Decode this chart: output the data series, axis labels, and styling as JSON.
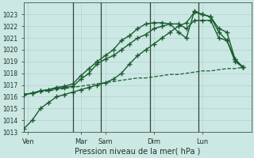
{
  "background_color": "#cce8e4",
  "grid_color": "#aaccc8",
  "line_color": "#1a5c30",
  "xlabel": "Pression niveau de la mer( hPa )",
  "ylim": [
    1013,
    1024
  ],
  "yticks": [
    1013,
    1014,
    1015,
    1016,
    1017,
    1018,
    1019,
    1020,
    1021,
    1022,
    1023
  ],
  "xlim": [
    0,
    28
  ],
  "xtick_labels": [
    "Ven",
    "Mar",
    "Sam",
    "Dim",
    "Lun"
  ],
  "xtick_positions": [
    0.5,
    7,
    10,
    16,
    22
  ],
  "vline_positions": [
    6,
    9.5,
    15.5,
    21.5
  ],
  "vline_color": "#334433",
  "series": [
    {
      "x": [
        0,
        1,
        2,
        3,
        4,
        5,
        6,
        7,
        8,
        9,
        10,
        11,
        12,
        13,
        14,
        15,
        16,
        17,
        18,
        19,
        20,
        21,
        22,
        23,
        24,
        25,
        26,
        27
      ],
      "y": [
        1016.2,
        1016.3,
        1016.4,
        1016.5,
        1016.6,
        1016.7,
        1016.8,
        1016.9,
        1017.0,
        1017.1,
        1017.2,
        1017.3,
        1017.4,
        1017.5,
        1017.6,
        1017.6,
        1017.7,
        1017.8,
        1017.9,
        1017.9,
        1018.0,
        1018.1,
        1018.2,
        1018.2,
        1018.3,
        1018.4,
        1018.4,
        1018.5
      ],
      "style": "--",
      "marker": null,
      "linewidth": 0.9
    },
    {
      "x": [
        0,
        1,
        2,
        3,
        4,
        5,
        6,
        7,
        8,
        9,
        10,
        11,
        12,
        13,
        14,
        15,
        16,
        17,
        18,
        19,
        20,
        21,
        22,
        23,
        24,
        25,
        26,
        27
      ],
      "y": [
        1016.2,
        1016.3,
        1016.5,
        1016.6,
        1016.7,
        1016.8,
        1016.9,
        1017.5,
        1018.0,
        1018.8,
        1019.2,
        1019.5,
        1020.0,
        1020.5,
        1021.0,
        1021.3,
        1021.8,
        1022.0,
        1022.2,
        1022.2,
        1021.8,
        1022.5,
        1022.5,
        1022.5,
        1021.0,
        1020.8,
        1019.0,
        1018.5
      ],
      "style": "-",
      "marker": "+",
      "markersize": 4,
      "linewidth": 1.0
    },
    {
      "x": [
        0,
        1,
        2,
        3,
        4,
        5,
        6,
        7,
        8,
        9,
        10,
        11,
        12,
        13,
        14,
        15,
        16,
        17,
        18,
        19,
        20,
        21,
        22,
        23,
        24,
        25,
        26,
        27
      ],
      "y": [
        1016.2,
        1016.3,
        1016.5,
        1016.6,
        1016.8,
        1016.9,
        1017.1,
        1017.8,
        1018.4,
        1019.0,
        1019.5,
        1020.0,
        1020.8,
        1021.2,
        1021.8,
        1022.2,
        1022.3,
        1022.3,
        1022.2,
        1021.5,
        1021.0,
        1023.3,
        1023.0,
        1022.8,
        1021.5,
        1020.8,
        1019.2,
        1018.5
      ],
      "style": "-",
      "marker": "+",
      "markersize": 4,
      "linewidth": 1.0
    },
    {
      "x": [
        0,
        1,
        2,
        3,
        4,
        5,
        6,
        7,
        8,
        9,
        10,
        11,
        12,
        13,
        14,
        15,
        16,
        17,
        18,
        19,
        20,
        21,
        22,
        23,
        24,
        25,
        26,
        27
      ],
      "y": [
        1013.3,
        1014.0,
        1015.0,
        1015.5,
        1016.0,
        1016.2,
        1016.4,
        1016.6,
        1016.8,
        1017.0,
        1017.2,
        1017.5,
        1018.0,
        1018.8,
        1019.5,
        1020.0,
        1020.5,
        1021.0,
        1021.5,
        1022.0,
        1022.3,
        1023.2,
        1023.0,
        1022.8,
        1021.8,
        1021.5,
        1019.2,
        1018.5
      ],
      "style": "-",
      "marker": "+",
      "markersize": 4,
      "linewidth": 1.0
    }
  ]
}
